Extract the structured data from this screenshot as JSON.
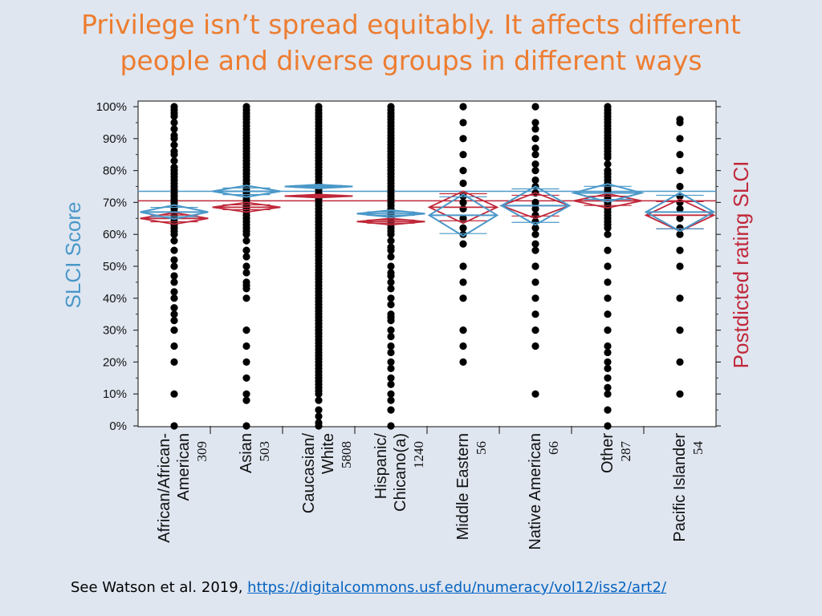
{
  "title": {
    "line1": "Privilege isn’t spread equitably. It affects different",
    "line2": "people and diverse groups in different ways"
  },
  "footer": {
    "citation": "See Watson et al. 2019,",
    "link": "https://digitalcommons.usf.edu/numeracy/vol12/iss2/art2/"
  },
  "colors": {
    "title": "#ed7d31",
    "score": "#4a98c9",
    "postdicted": "#c0283a",
    "dots": "#000000",
    "background": "#dfe6f0"
  },
  "chart_data": {
    "type": "scatter",
    "ylabel_left": "SLCI Score",
    "ylabel_right": "Postdicted rating SLCI",
    "ylim": [
      0,
      100
    ],
    "yticks": [
      "0%",
      "10%",
      "20%",
      "30%",
      "40%",
      "50%",
      "60%",
      "70%",
      "80%",
      "90%",
      "100%"
    ],
    "grand_mean_score": 73.5,
    "grand_mean_postdicted": 70.5,
    "groups": [
      {
        "label_lines": [
          "African/African-",
          "American"
        ],
        "n": "309",
        "mean_score": 67,
        "ci_score": 2.2,
        "mean_postdicted": 65,
        "ci_postdicted": 1.8,
        "points": [
          100,
          99,
          98,
          97,
          95,
          93,
          91,
          90,
          88,
          86,
          85,
          83,
          81,
          80,
          79,
          78,
          77,
          76,
          75,
          74,
          73,
          72,
          71,
          70,
          69,
          68,
          67,
          66,
          65,
          64,
          63,
          62,
          61,
          60,
          58,
          55,
          52,
          50,
          47,
          45,
          42,
          40,
          37,
          35,
          33,
          30,
          25,
          20,
          10,
          0
        ]
      },
      {
        "label_lines": [
          "Asian"
        ],
        "n": "503",
        "mean_score": 73.5,
        "ci_score": 1.8,
        "mean_postdicted": 68.5,
        "ci_postdicted": 1.5,
        "points": [
          100,
          99,
          98,
          97,
          96,
          95,
          94,
          93,
          92,
          91,
          90,
          89,
          88,
          87,
          86,
          85,
          84,
          83,
          82,
          81,
          80,
          79,
          78,
          77,
          76,
          75,
          74,
          73,
          72,
          71,
          70,
          69,
          68,
          67,
          66,
          65,
          64,
          63,
          62,
          61,
          60,
          58,
          55,
          53,
          50,
          48,
          45,
          44,
          43,
          40,
          30,
          25,
          20,
          15,
          10,
          8,
          0
        ]
      },
      {
        "label_lines": [
          "Caucasian/",
          "White"
        ],
        "n": "5808",
        "mean_score": 75,
        "ci_score": 0.6,
        "mean_postdicted": 72,
        "ci_postdicted": 0.5,
        "points": [
          100,
          99,
          98,
          97,
          96,
          95,
          94,
          93,
          92,
          91,
          90,
          89,
          88,
          87,
          86,
          85,
          84,
          83,
          82,
          81,
          80,
          79,
          78,
          77,
          76,
          75,
          74,
          73,
          72,
          71,
          70,
          69,
          68,
          67,
          66,
          65,
          64,
          63,
          62,
          61,
          60,
          59,
          58,
          57,
          56,
          55,
          54,
          53,
          52,
          51,
          50,
          49,
          48,
          47,
          46,
          45,
          44,
          43,
          42,
          41,
          40,
          39,
          38,
          37,
          36,
          35,
          34,
          33,
          32,
          31,
          30,
          29,
          28,
          27,
          26,
          25,
          24,
          23,
          22,
          21,
          20,
          19,
          18,
          17,
          16,
          15,
          14,
          13,
          12,
          11,
          10,
          8,
          5,
          3,
          1,
          0
        ]
      },
      {
        "label_lines": [
          "Hispanic/",
          "Chicano(a)"
        ],
        "n": "1240",
        "mean_score": 66.5,
        "ci_score": 1.1,
        "mean_postdicted": 64,
        "ci_postdicted": 1.0,
        "points": [
          100,
          99,
          98,
          97,
          96,
          95,
          94,
          93,
          92,
          91,
          90,
          89,
          88,
          87,
          86,
          85,
          84,
          83,
          82,
          81,
          80,
          79,
          78,
          77,
          76,
          75,
          74,
          73,
          72,
          71,
          70,
          69,
          68,
          67,
          66,
          65,
          64,
          63,
          62,
          61,
          60,
          58,
          56,
          55,
          53,
          50,
          48,
          47,
          45,
          43,
          40,
          38,
          35,
          34,
          33,
          30,
          28,
          25,
          23,
          20,
          18,
          15,
          13,
          10,
          8,
          5,
          0
        ]
      },
      {
        "label_lines": [
          "Middle Eastern"
        ],
        "n": "56",
        "mean_score": 66,
        "ci_score": 6.5,
        "mean_postdicted": 68.5,
        "ci_postdicted": 5.0,
        "points": [
          100,
          95,
          90,
          85,
          80,
          76,
          72,
          70,
          68,
          65,
          62,
          60,
          57,
          50,
          45,
          40,
          30,
          25,
          20
        ]
      },
      {
        "label_lines": [
          "Native American"
        ],
        "n": "66",
        "mean_score": 69,
        "ci_score": 6.0,
        "mean_postdicted": 69,
        "ci_postdicted": 4.0,
        "points": [
          100,
          95,
          93,
          90,
          87,
          85,
          82,
          80,
          77,
          75,
          73,
          70,
          68,
          66,
          64,
          62,
          60,
          57,
          55,
          50,
          45,
          40,
          35,
          30,
          25,
          10
        ]
      },
      {
        "label_lines": [
          "Other"
        ],
        "n": "287",
        "mean_score": 73,
        "ci_score": 2.8,
        "mean_postdicted": 70.5,
        "ci_postdicted": 2.2,
        "points": [
          100,
          99,
          98,
          97,
          96,
          95,
          94,
          93,
          92,
          91,
          90,
          89,
          88,
          87,
          86,
          85,
          84,
          82,
          80,
          79,
          78,
          77,
          76,
          75,
          74,
          73,
          72,
          71,
          70,
          69,
          68,
          67,
          66,
          65,
          64,
          63,
          62,
          60,
          55,
          50,
          45,
          40,
          35,
          30,
          25,
          23,
          20,
          18,
          15,
          12,
          10,
          5,
          0
        ]
      },
      {
        "label_lines": [
          "Pacific Islander"
        ],
        "n": "54",
        "mean_score": 67,
        "ci_score": 6.0,
        "mean_postdicted": 66,
        "ci_postdicted": 5.0,
        "points": [
          96,
          95,
          90,
          85,
          80,
          75,
          72,
          70,
          68,
          65,
          62,
          60,
          55,
          50,
          40,
          30,
          20,
          10
        ]
      }
    ]
  }
}
